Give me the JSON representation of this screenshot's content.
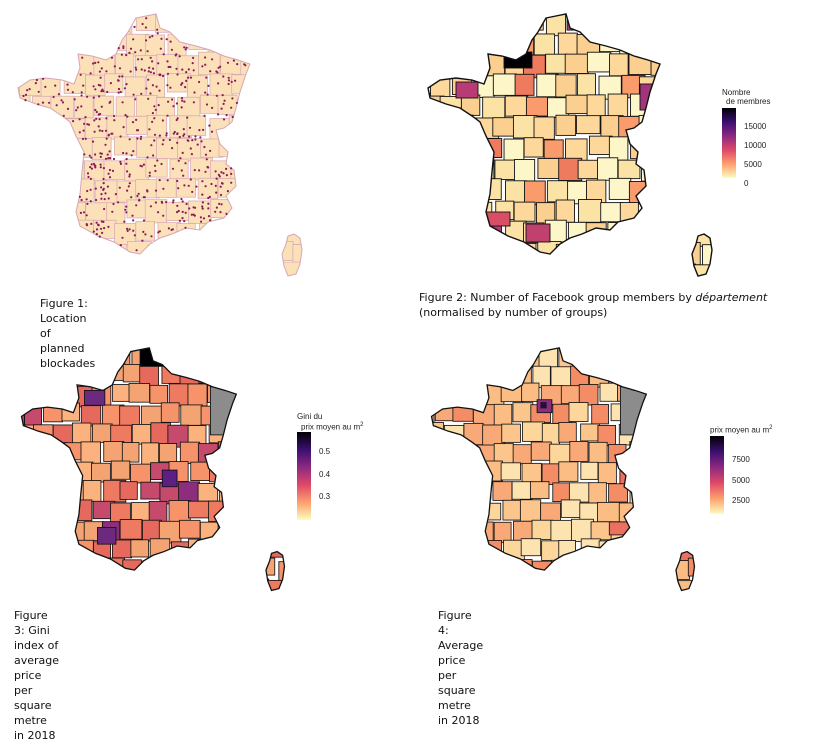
{
  "figures": [
    {
      "id": "fig1",
      "caption": "Figure 1: Location of planned blockades",
      "style": "dots",
      "colors": {
        "fill": "#fbe0b8",
        "border": "#d6a6b3",
        "dot": "#8a1a5c"
      }
    },
    {
      "id": "fig2",
      "caption_prefix": "Figure 2: Number of Facebook group members by ",
      "caption_em": "département",
      "caption_suffix": " (normalised by number of groups)",
      "style": "choropleth",
      "legend": {
        "title_line1": "Nombre",
        "title_line2": "de membres",
        "ticks": [
          "15000",
          "10000",
          "5000",
          "0"
        ],
        "gradient": [
          "#000004",
          "#3b0f70",
          "#8c2981",
          "#de4968",
          "#fe9f6d",
          "#fcfdbf"
        ]
      }
    },
    {
      "id": "fig3",
      "caption": "Figure 3: Gini index of average price per square metre in 2018",
      "style": "choropleth",
      "legend": {
        "title_line1": "Gini du",
        "title_line2": "prix moyen au m",
        "title_sup": "2",
        "ticks": [
          "0.5",
          "0.4",
          "0.3"
        ],
        "gradient": [
          "#000004",
          "#3b0f70",
          "#8c2981",
          "#de4968",
          "#fe9f6d",
          "#fcfdbf"
        ]
      }
    },
    {
      "id": "fig4",
      "caption": "Figure 4: Average price per square metre in 2018",
      "style": "choropleth",
      "legend": {
        "title_line1": "prix moyen au m",
        "title_sup": "2",
        "ticks": [
          "7500",
          "5000",
          "2500"
        ],
        "gradient": [
          "#000004",
          "#3b0f70",
          "#8c2981",
          "#de4968",
          "#fe9f6d",
          "#fcfdbf"
        ]
      }
    }
  ]
}
